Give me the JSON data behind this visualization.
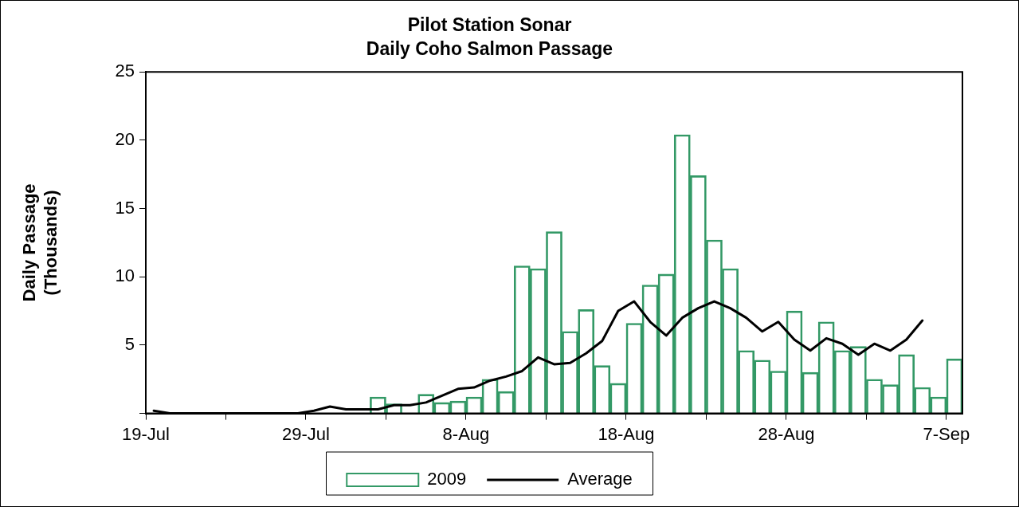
{
  "chart_data": {
    "type": "bar",
    "title": "Pilot Station Sonar",
    "subtitle": "Daily Coho Salmon Passage",
    "ylabel": "Daily Passage\n(Thousands)",
    "x": [
      "--07-19T12:00",
      "--07-20T12:00",
      "--07-21T12:00",
      "--07-22T12:00",
      "--07-23T12:00",
      "--07-24T12:00",
      "--07-25T12:00",
      "--07-26T12:00",
      "--07-27T12:00",
      "--07-28T12:00",
      "--07-29T12:00",
      "--07-30T12:00",
      "--07-31T12:00",
      "--08-01T12:00",
      "--08-02T12:00",
      "--08-03T12:00",
      "--08-04T12:00",
      "--08-05T12:00",
      "--08-06T12:00",
      "--08-07T12:00",
      "--08-08T12:00",
      "--08-09T12:00",
      "--08-10T12:00",
      "--08-11T12:00",
      "--08-12T12:00",
      "--08-13T12:00",
      "--08-14T12:00",
      "--08-15T12:00",
      "--08-16T12:00",
      "--08-17T12:00",
      "--08-18T12:00",
      "--08-19T12:00",
      "--08-20T12:00",
      "--08-21T12:00",
      "--08-22T12:00",
      "--08-23T12:00",
      "--08-24T12:00",
      "--08-25T12:00",
      "--08-26T12:00",
      "--08-27T12:00",
      "--08-28T12:00",
      "--08-29T12:00",
      "--08-30T12:00",
      "--08-31T12:00",
      "--09-01T12:00",
      "--09-02T12:00",
      "--09-03T12:00",
      "--09-04T12:00",
      "--09-05T12:00",
      "--09-06T12:00",
      "--09-07T12:00"
    ],
    "series": [
      {
        "name": "2009",
        "type": "bar",
        "color": "#339966",
        "values": [
          null,
          null,
          null,
          null,
          null,
          null,
          null,
          null,
          null,
          null,
          null,
          null,
          null,
          null,
          1.2,
          0.7,
          null,
          1.4,
          0.8,
          0.9,
          1.2,
          2.5,
          1.6,
          10.8,
          10.6,
          13.3,
          6.0,
          7.6,
          3.5,
          2.2,
          6.6,
          9.4,
          10.2,
          20.4,
          17.4,
          12.7,
          10.6,
          4.6,
          3.9,
          3.1,
          7.5,
          3.0,
          6.7,
          4.6,
          4.9,
          2.5,
          2.1,
          4.3,
          1.9,
          1.2,
          4.0
        ]
      },
      {
        "name": "Average",
        "type": "line",
        "color": "#000000",
        "values": [
          0.2,
          0,
          0,
          0,
          0,
          0,
          0,
          0,
          0,
          0,
          0.2,
          0.5,
          0.3,
          0.3,
          0.3,
          0.6,
          0.6,
          0.8,
          1.3,
          1.8,
          1.9,
          2.4,
          2.7,
          3.1,
          4.1,
          3.6,
          3.7,
          4.4,
          5.3,
          7.5,
          8.2,
          6.7,
          5.7,
          7.0,
          7.7,
          8.2,
          7.7,
          7.0,
          6.0,
          6.7,
          5.4,
          4.6,
          5.5,
          5.1,
          4.3,
          5.1,
          4.6,
          5.4,
          6.8,
          null,
          null
        ]
      }
    ],
    "xlim": [
      "--07-19",
      "--09-08"
    ],
    "xticks": [
      {
        "value": "--07-19",
        "label": "19-Jul"
      },
      {
        "value": "--07-24",
        "label": null
      },
      {
        "value": "--07-29",
        "label": "29-Jul"
      },
      {
        "value": "--08-03",
        "label": null
      },
      {
        "value": "--08-08",
        "label": "8-Aug"
      },
      {
        "value": "--08-13",
        "label": null
      },
      {
        "value": "--08-18",
        "label": "18-Aug"
      },
      {
        "value": "--08-23",
        "label": null
      },
      {
        "value": "--08-28",
        "label": "28-Aug"
      },
      {
        "value": "--09-02",
        "label": null
      },
      {
        "value": "--09-07",
        "label": "7-Sep"
      }
    ],
    "ylim": [
      0,
      25
    ],
    "yticks": [
      {
        "value": 0,
        "label": null
      },
      5,
      10,
      15,
      20,
      25
    ],
    "legend": "bottom",
    "marker": "none",
    "line_style": "solid"
  }
}
